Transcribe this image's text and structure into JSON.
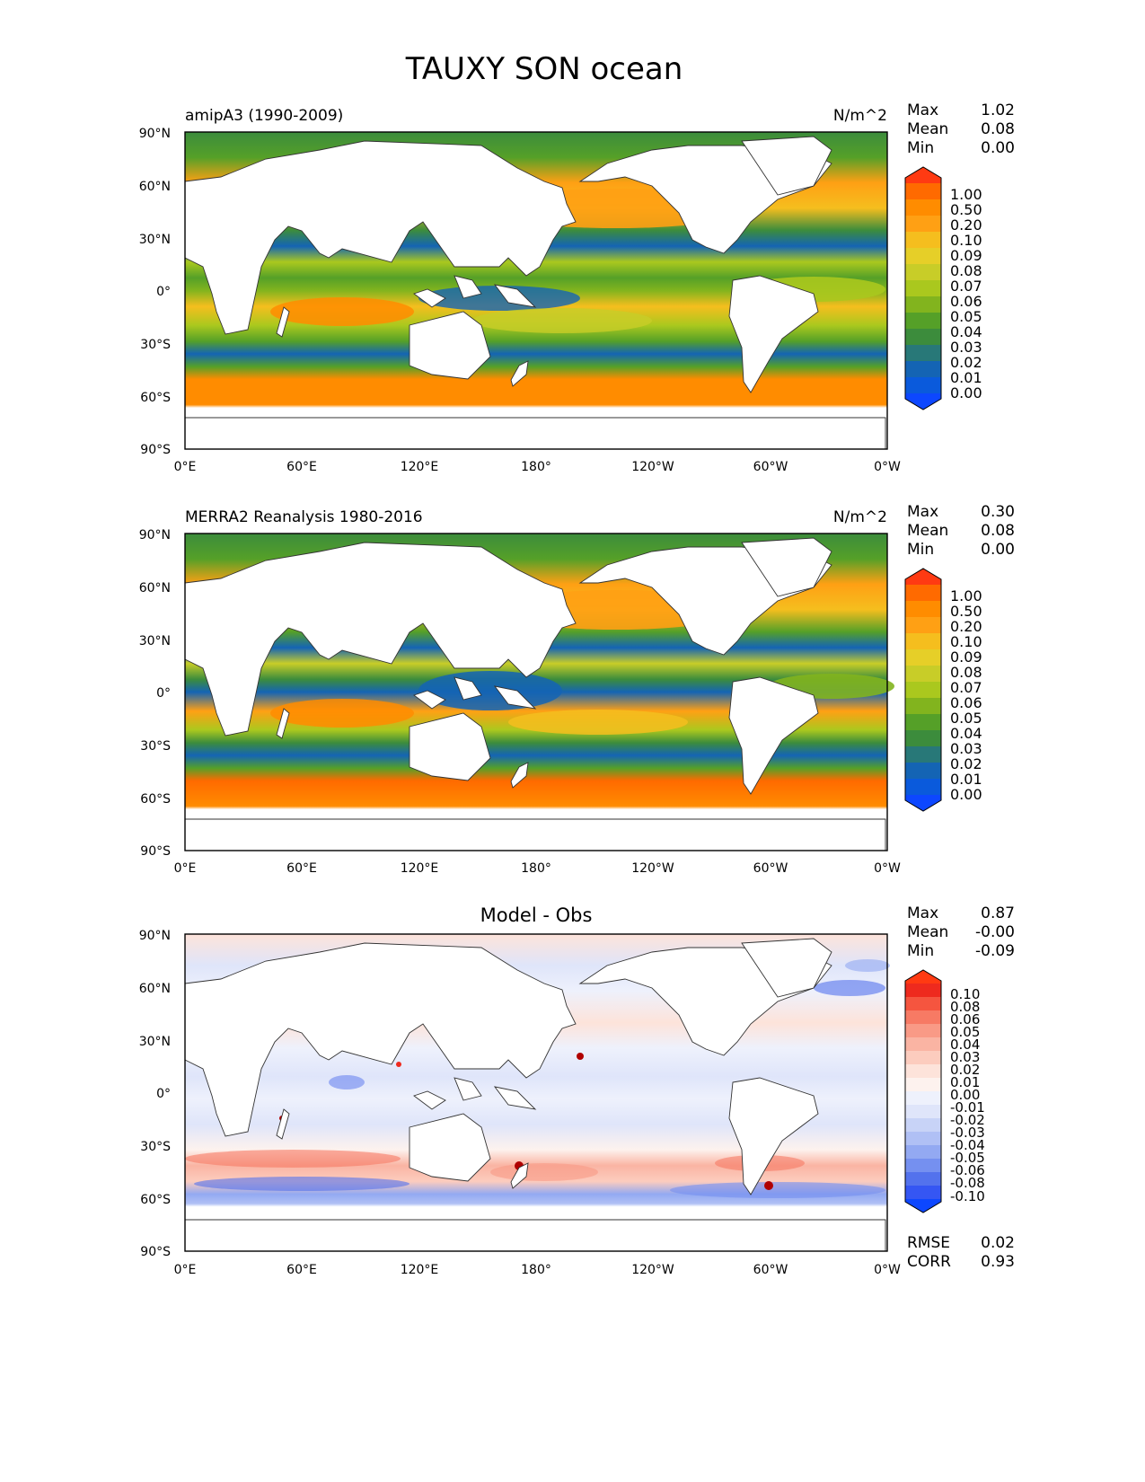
{
  "figure": {
    "title": "TAUXY SON ocean"
  },
  "chart_data": [
    {
      "type": "heatmap",
      "name": "model",
      "title": "amipA3 (1990-2009)",
      "units": "N/m^2",
      "stats": [
        {
          "label": "Max",
          "value": "1.02"
        },
        {
          "label": "Mean",
          "value": "0.08"
        },
        {
          "label": "Min",
          "value": "0.00"
        }
      ],
      "x_ticks": [
        "0°E",
        "60°E",
        "120°E",
        "180°",
        "120°W",
        "60°W",
        "0°W"
      ],
      "y_ticks": [
        "90°N",
        "60°N",
        "30°N",
        "0°",
        "30°S",
        "60°S",
        "90°S"
      ],
      "xlim": [
        0,
        360
      ],
      "ylim": [
        -90,
        90
      ],
      "colorbar": {
        "labels": [
          "1.00",
          "0.50",
          "0.20",
          "0.10",
          "0.09",
          "0.08",
          "0.07",
          "0.06",
          "0.05",
          "0.04",
          "0.03",
          "0.02",
          "0.01",
          "0.00"
        ],
        "colors": [
          "#ff3a12",
          "#ff6a00",
          "#ff8c00",
          "#ffa014",
          "#f5be1e",
          "#e6cf28",
          "#c8cd28",
          "#aac81e",
          "#82b41e",
          "#55a028",
          "#3c8c3c",
          "#287878",
          "#1464b4",
          "#0a5adc",
          "#0d47ff"
        ]
      }
    },
    {
      "type": "heatmap",
      "name": "obs",
      "title": "MERRA2 Reanalysis 1980-2016",
      "units": "N/m^2",
      "stats": [
        {
          "label": "Max",
          "value": "0.30"
        },
        {
          "label": "Mean",
          "value": "0.08"
        },
        {
          "label": "Min",
          "value": "0.00"
        }
      ],
      "x_ticks": [
        "0°E",
        "60°E",
        "120°E",
        "180°",
        "120°W",
        "60°W",
        "0°W"
      ],
      "y_ticks": [
        "90°N",
        "60°N",
        "30°N",
        "0°",
        "30°S",
        "60°S",
        "90°S"
      ],
      "xlim": [
        0,
        360
      ],
      "ylim": [
        -90,
        90
      ],
      "colorbar": {
        "labels": [
          "1.00",
          "0.50",
          "0.20",
          "0.10",
          "0.09",
          "0.08",
          "0.07",
          "0.06",
          "0.05",
          "0.04",
          "0.03",
          "0.02",
          "0.01",
          "0.00"
        ],
        "colors": [
          "#ff3a12",
          "#ff6a00",
          "#ff8c00",
          "#ffa014",
          "#f5be1e",
          "#e6cf28",
          "#c8cd28",
          "#aac81e",
          "#82b41e",
          "#55a028",
          "#3c8c3c",
          "#287878",
          "#1464b4",
          "#0a5adc",
          "#0d47ff"
        ]
      }
    },
    {
      "type": "heatmap",
      "name": "diff",
      "title": "Model - Obs",
      "stats": [
        {
          "label": "Max",
          "value": "0.87"
        },
        {
          "label": "Mean",
          "value": "-0.00"
        },
        {
          "label": "Min",
          "value": "-0.09"
        }
      ],
      "bottom_stats": [
        {
          "label": "RMSE",
          "value": "0.02"
        },
        {
          "label": "CORR",
          "value": "0.93"
        }
      ],
      "x_ticks": [
        "0°E",
        "60°E",
        "120°E",
        "180°",
        "120°W",
        "60°W",
        "0°W"
      ],
      "y_ticks": [
        "90°N",
        "60°N",
        "30°N",
        "0°",
        "30°S",
        "60°S",
        "90°S"
      ],
      "xlim": [
        0,
        360
      ],
      "ylim": [
        -90,
        90
      ],
      "colorbar": {
        "labels": [
          "0.10",
          "0.08",
          "0.06",
          "0.05",
          "0.04",
          "0.03",
          "0.02",
          "0.01",
          "0.00",
          "-0.01",
          "-0.02",
          "-0.03",
          "-0.04",
          "-0.05",
          "-0.06",
          "-0.08",
          "-0.10"
        ],
        "colors": [
          "#ff3a12",
          "#ee2a1e",
          "#f5553f",
          "#f77a64",
          "#f99a86",
          "#fab4a3",
          "#fcccbe",
          "#fde3da",
          "#fdf2ee",
          "#eef1fc",
          "#dfe5fa",
          "#c8d3f7",
          "#b0c0f5",
          "#93a9f2",
          "#7590f0",
          "#5372ed",
          "#3556f3",
          "#0d47ff"
        ]
      }
    }
  ]
}
